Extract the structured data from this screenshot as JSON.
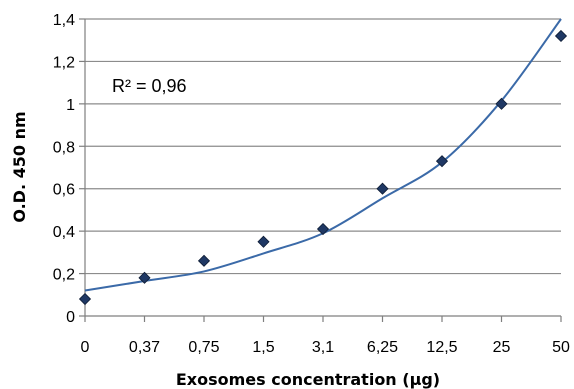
{
  "chart_data": {
    "type": "scatter",
    "xlabel": "Exosomes concentration (µg)",
    "ylabel": "O.D. 450 nm",
    "categories": [
      "0",
      "0,37",
      "0,75",
      "1,5",
      "3,1",
      "6,25",
      "12,5",
      "25",
      "50"
    ],
    "y_ticks": [
      "0",
      "0,2",
      "0,4",
      "0,6",
      "0,8",
      "1",
      "1,2",
      "1,4"
    ],
    "ylim": [
      0,
      1.4
    ],
    "grid": true,
    "legend": "none",
    "annotation": "R² = 0,96",
    "series": [
      {
        "values": [
          0.08,
          0.18,
          0.26,
          0.35,
          0.41,
          0.6,
          0.73,
          1.0,
          1.32
        ],
        "color": "#1f3864",
        "marker": "diamond"
      }
    ],
    "trendline": {
      "values": [
        0.12,
        0.165,
        0.21,
        0.295,
        0.39,
        0.555,
        0.725,
        1.015,
        1.4
      ],
      "color": "#3b6aa8"
    }
  }
}
